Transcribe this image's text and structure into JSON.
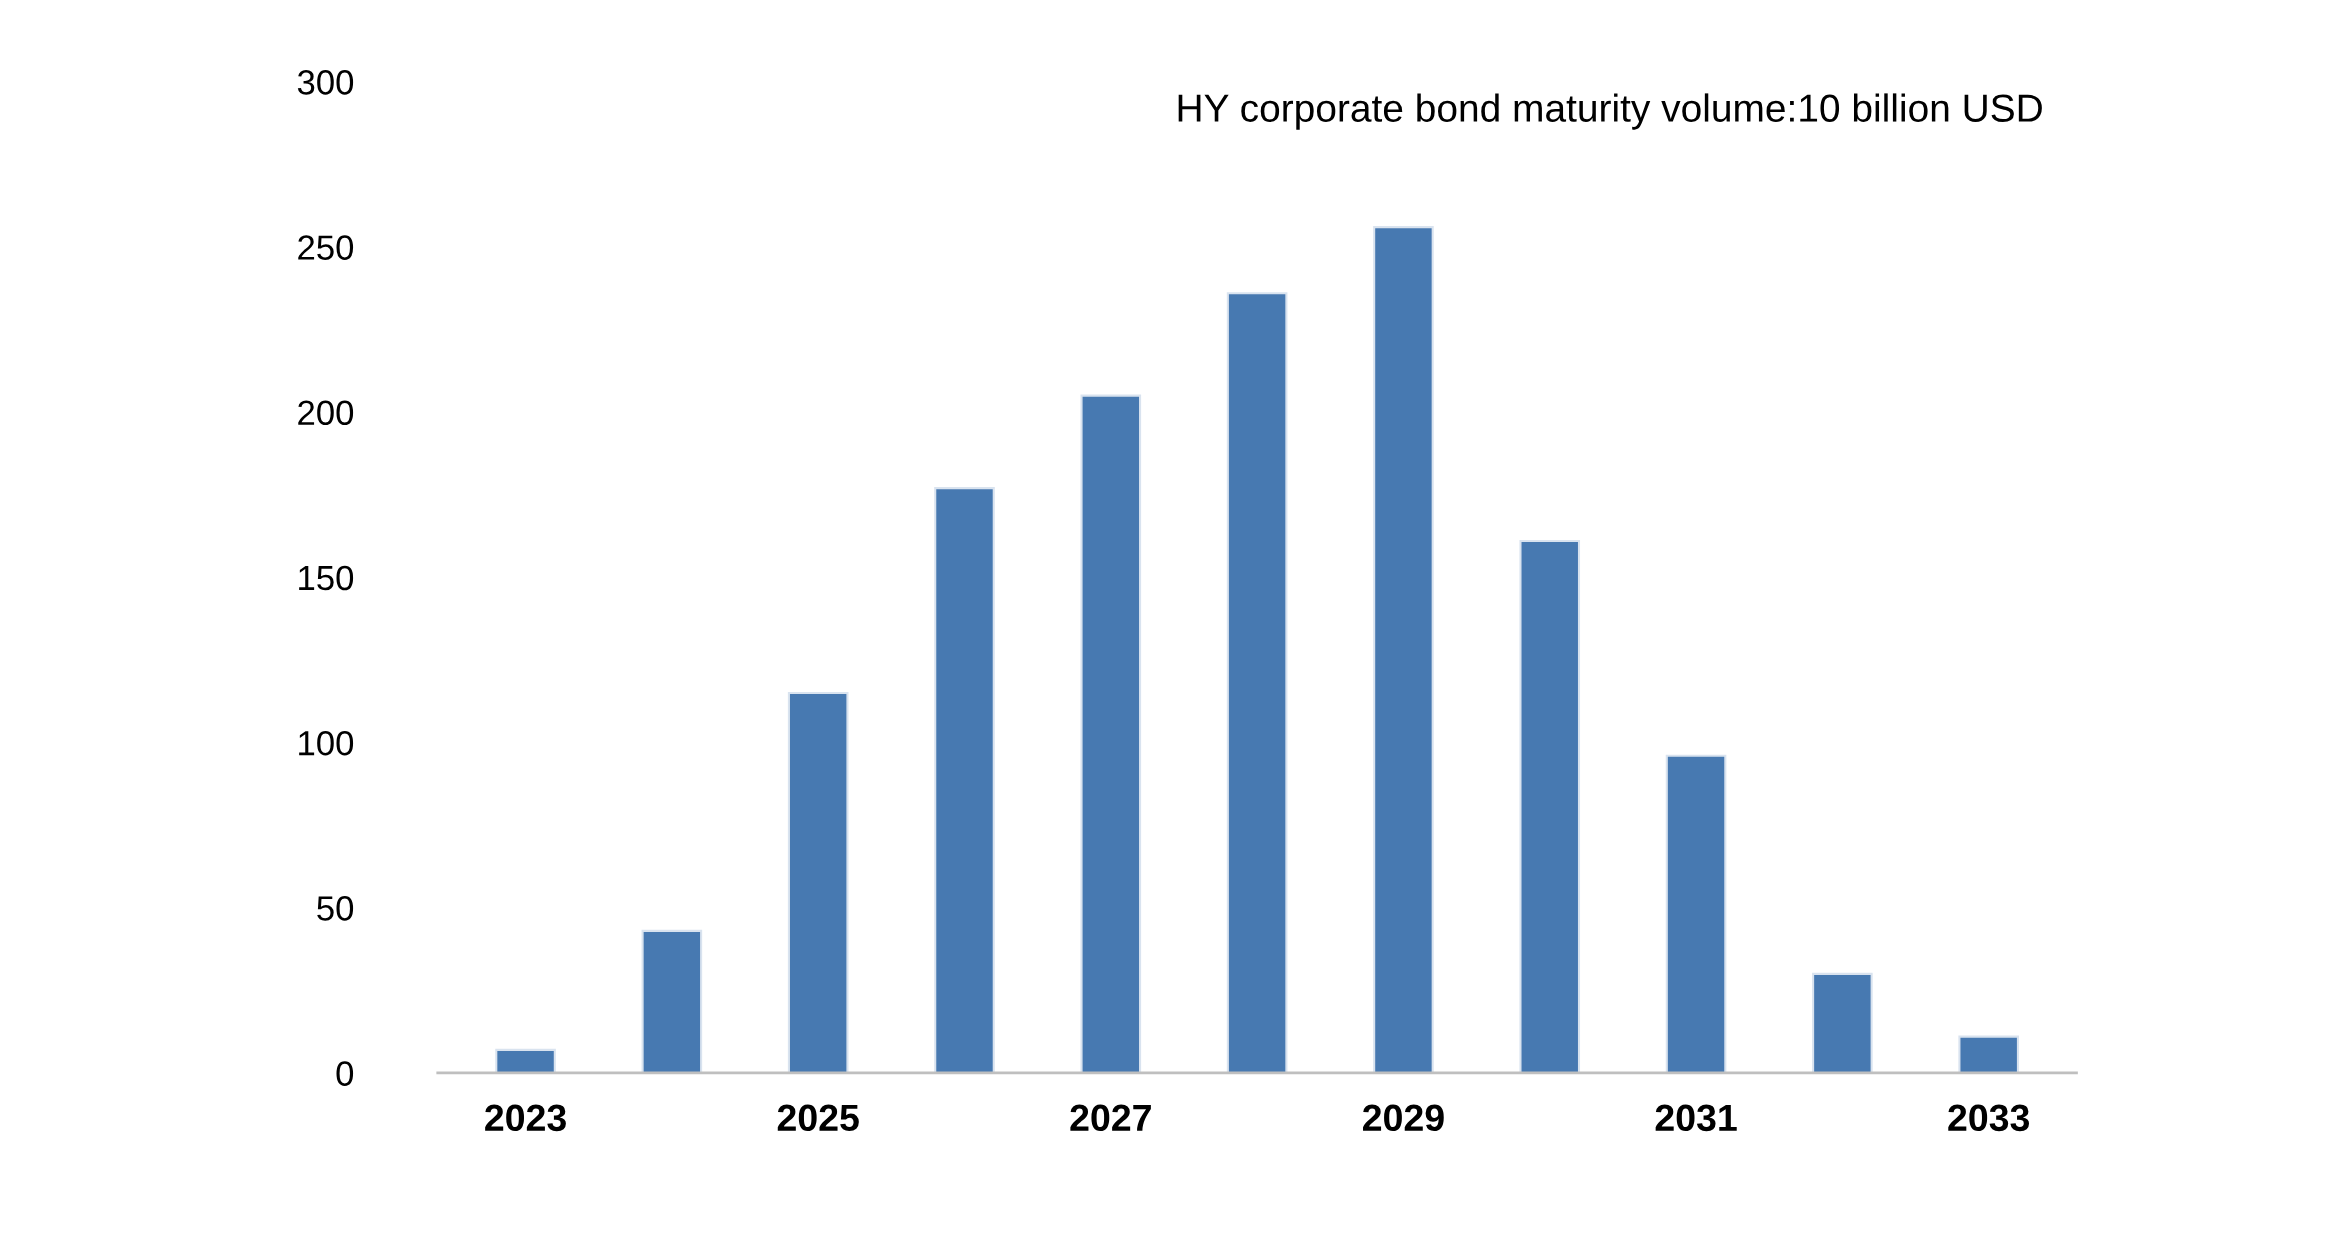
{
  "chart_data": {
    "type": "bar",
    "title": "HY corporate bond maturity volume:10 billion USD",
    "categories": [
      "2023",
      null,
      "2025",
      null,
      "2027",
      null,
      "2029",
      null,
      "2031",
      null,
      "2033"
    ],
    "values": [
      7,
      43,
      115,
      177,
      205,
      236,
      256,
      161,
      96,
      30,
      11
    ],
    "color": "#4779b1",
    "ylim": [
      0,
      300
    ],
    "yticks": [
      0,
      50,
      100,
      150,
      200,
      250,
      300
    ],
    "grid": false
  }
}
